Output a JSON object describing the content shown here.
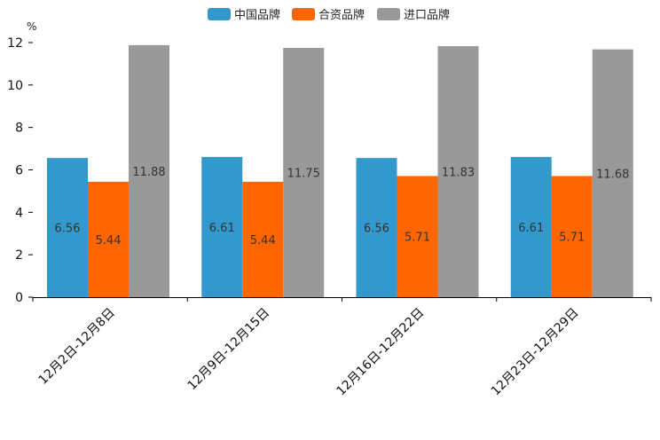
{
  "chart_data": {
    "type": "bar",
    "title": "",
    "xlabel": "",
    "ylabel": "%",
    "ylim": [
      0,
      12
    ],
    "yticks": [
      0,
      2,
      4,
      6,
      8,
      10,
      12
    ],
    "grid": false,
    "legend_position": "top-center",
    "categories": [
      "12月2日-12月8日",
      "12月9日-12月15日",
      "12月16日-12月22日",
      "12月23日-12月29日"
    ],
    "series": [
      {
        "name": "中国品牌",
        "color": "#3399cc",
        "values": [
          6.56,
          6.61,
          6.56,
          6.61
        ],
        "labels": [
          "6.56",
          "6.61",
          "6.56",
          "6.61"
        ]
      },
      {
        "name": "合资品牌",
        "color": "#ff6600",
        "values": [
          5.44,
          5.44,
          5.71,
          5.71
        ],
        "labels": [
          "5.44",
          "5.44",
          "5.71",
          "5.71"
        ]
      },
      {
        "name": "进口品牌",
        "color": "#999999",
        "values": [
          11.88,
          11.75,
          11.83,
          11.68
        ],
        "labels": [
          "11.88",
          "11.75",
          "11.83",
          "11.68"
        ]
      }
    ]
  }
}
